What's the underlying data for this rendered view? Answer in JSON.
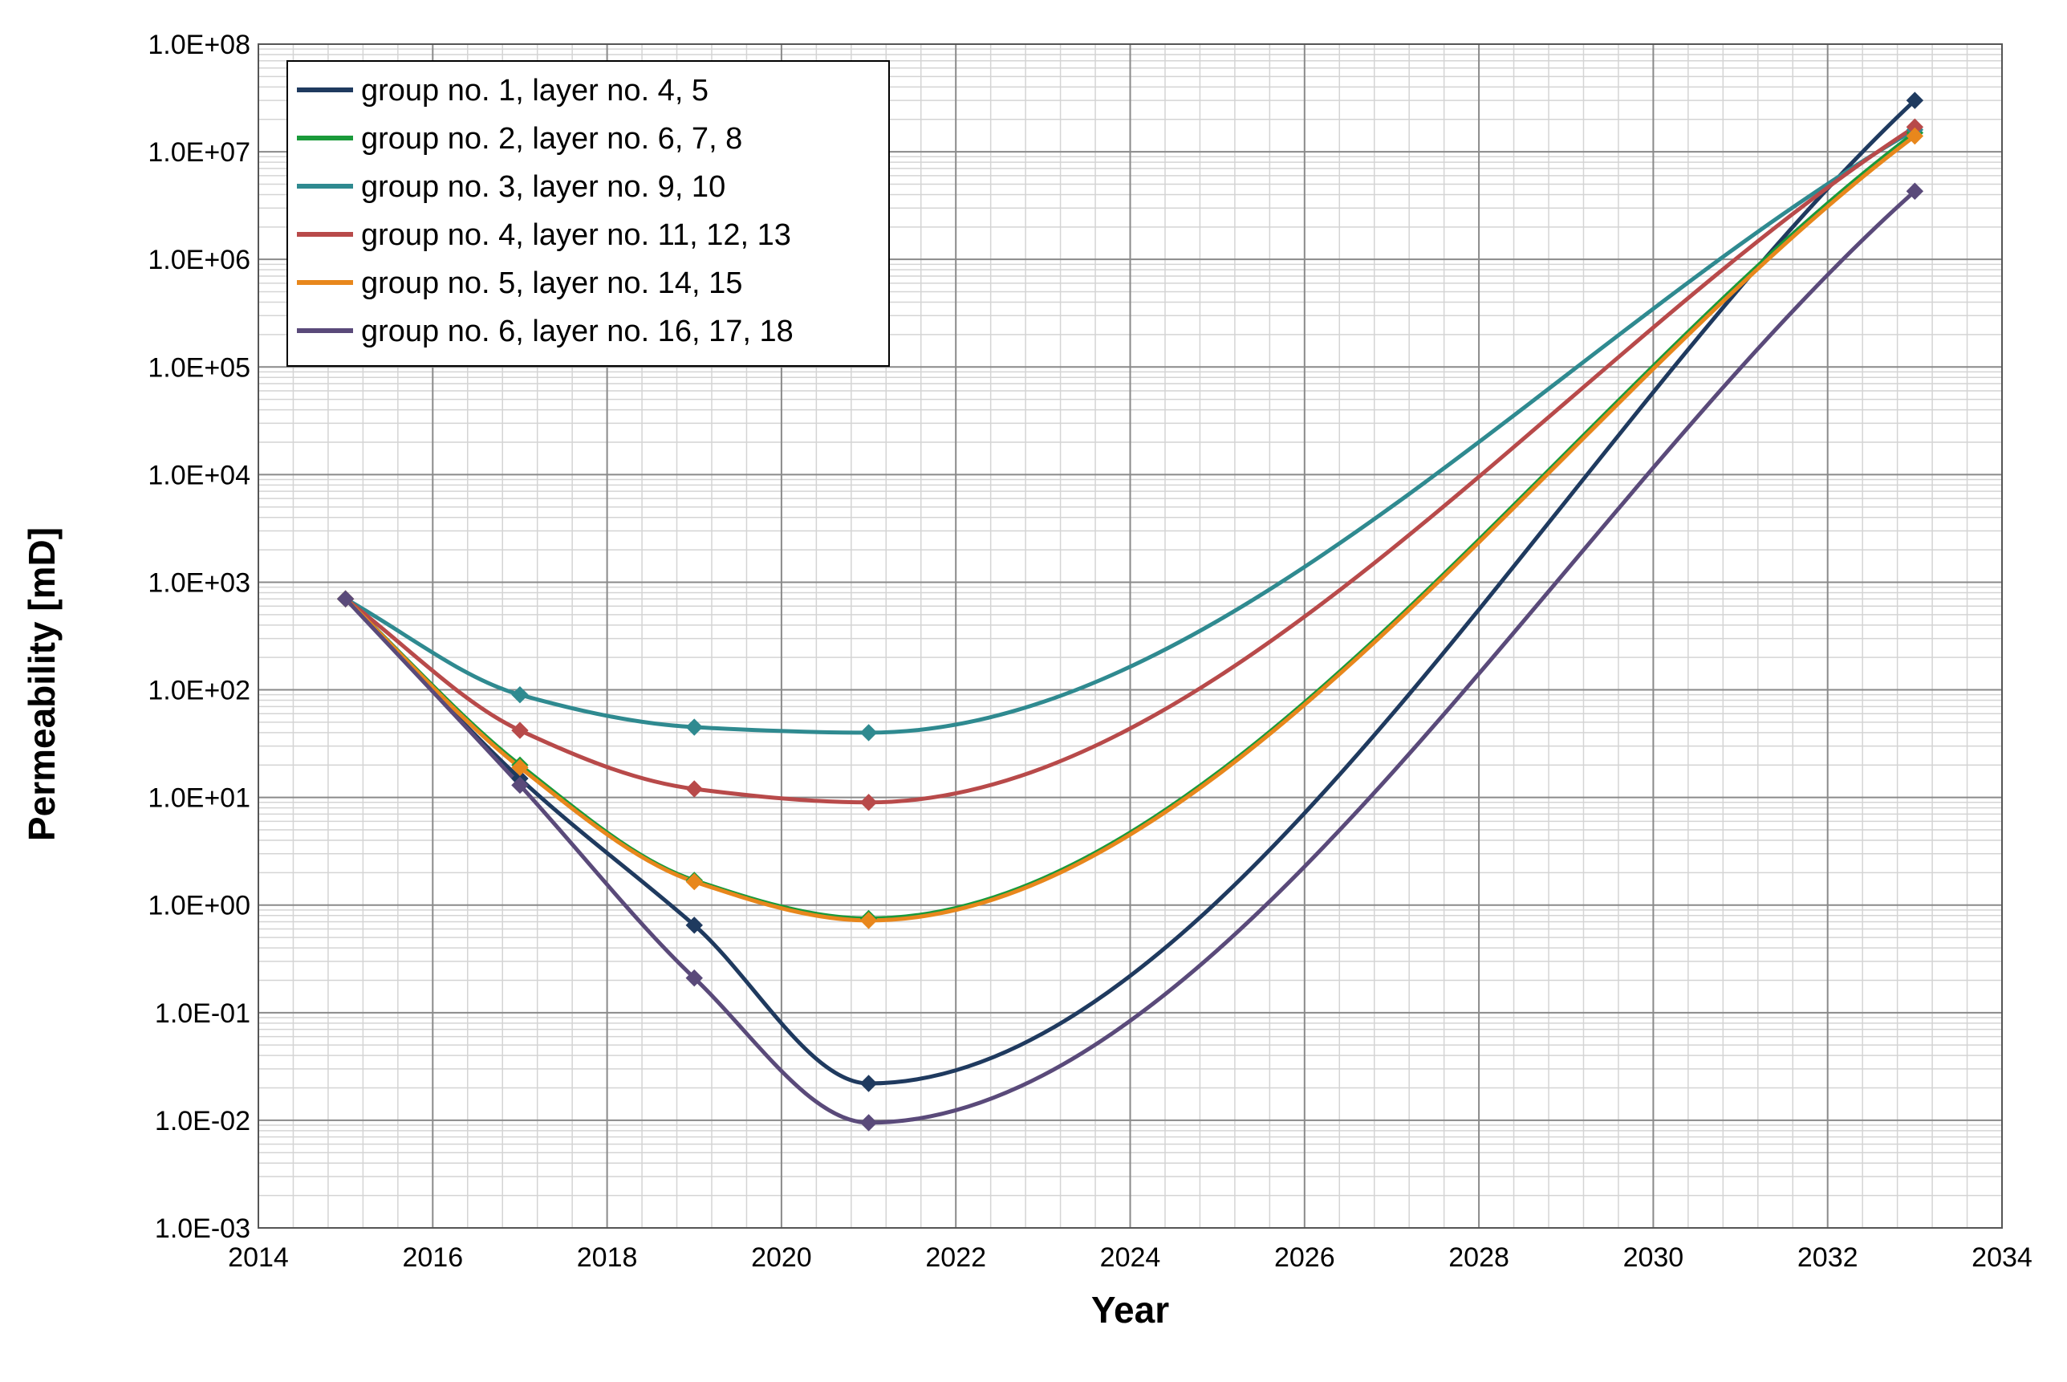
{
  "chart_data": {
    "type": "line",
    "title": "",
    "xlabel": "Year",
    "ylabel": "Permeability [mD]",
    "xlim": [
      2014,
      2034
    ],
    "ylim": [
      0.001,
      100000000
    ],
    "yscale": "log",
    "grid": true,
    "legend_position": "top-left",
    "x_ticks": [
      "2014",
      "2016",
      "2018",
      "2020",
      "2022",
      "2024",
      "2026",
      "2028",
      "2030",
      "2032",
      "2034"
    ],
    "y_ticks": [
      "1.0E-03",
      "1.0E-02",
      "1.0E-01",
      "1.0E+00",
      "1.0E+01",
      "1.0E+02",
      "1.0E+03",
      "1.0E+04",
      "1.0E+05",
      "1.0E+06",
      "1.0E+07",
      "1.0E+08"
    ],
    "x": [
      2015,
      2017,
      2019,
      2021,
      2033
    ],
    "series": [
      {
        "name": "group no. 1, layer no. 4, 5",
        "color": "#1f3a5f",
        "values": [
          700,
          15,
          0.65,
          0.022,
          30000000
        ]
      },
      {
        "name": "group no. 2, layer no. 6, 7, 8",
        "color": "#1a9a3a",
        "values": [
          700,
          20,
          1.7,
          0.75,
          15000000
        ]
      },
      {
        "name": "group no. 3, layer no. 9, 10",
        "color": "#2f8a90",
        "values": [
          700,
          90,
          45,
          40,
          16000000
        ]
      },
      {
        "name": "group no. 4, layer no. 11, 12, 13",
        "color": "#b84a4a",
        "values": [
          700,
          42,
          12,
          9,
          17000000
        ]
      },
      {
        "name": "group no. 5, layer no. 14, 15",
        "color": "#e8871c",
        "values": [
          700,
          19,
          1.65,
          0.72,
          14000000
        ]
      },
      {
        "name": "group no. 6, layer no. 16, 17, 18",
        "color": "#5a4a7a",
        "values": [
          700,
          13,
          0.21,
          0.0095,
          4300000
        ]
      }
    ]
  }
}
